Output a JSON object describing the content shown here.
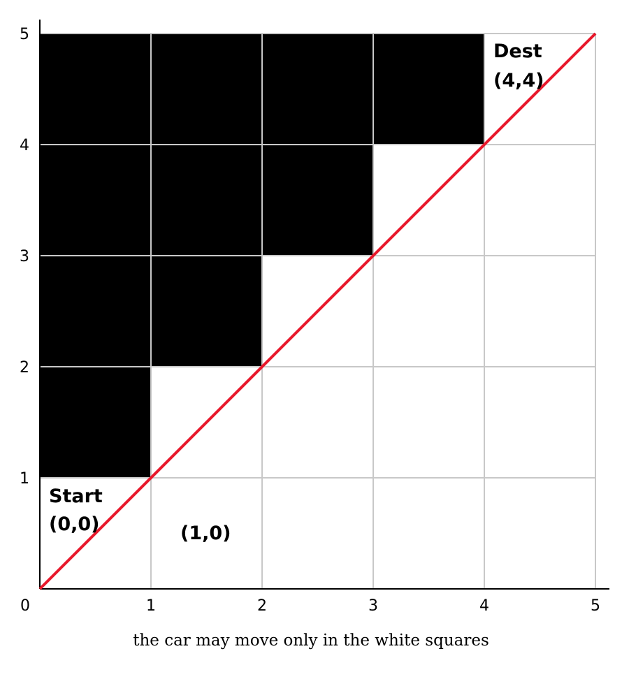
{
  "grid": {
    "cols": 5,
    "rows": 5,
    "blocked_cells": [
      [
        0,
        1
      ],
      [
        0,
        2
      ],
      [
        0,
        3
      ],
      [
        0,
        4
      ],
      [
        1,
        2
      ],
      [
        1,
        3
      ],
      [
        1,
        4
      ],
      [
        2,
        3
      ],
      [
        2,
        4
      ],
      [
        3,
        4
      ]
    ],
    "colors": {
      "blocked": "#000000",
      "free": "#ffffff",
      "gridline": "#c8c8c8",
      "axis": "#000000",
      "path": "#e8192c"
    }
  },
  "axes": {
    "x_ticks": [
      "0",
      "1",
      "2",
      "3",
      "4",
      "5"
    ],
    "y_ticks": [
      "1",
      "2",
      "3",
      "4",
      "5"
    ]
  },
  "path_line": {
    "from": [
      0,
      0
    ],
    "to": [
      5,
      5
    ]
  },
  "labels": {
    "start_word": "Start",
    "start_coord": "(0,0)",
    "dest_word": "Dest",
    "dest_coord": "(4,4)",
    "cell_1_0": "(1,0)"
  },
  "caption": "the car may move only in the white squares"
}
